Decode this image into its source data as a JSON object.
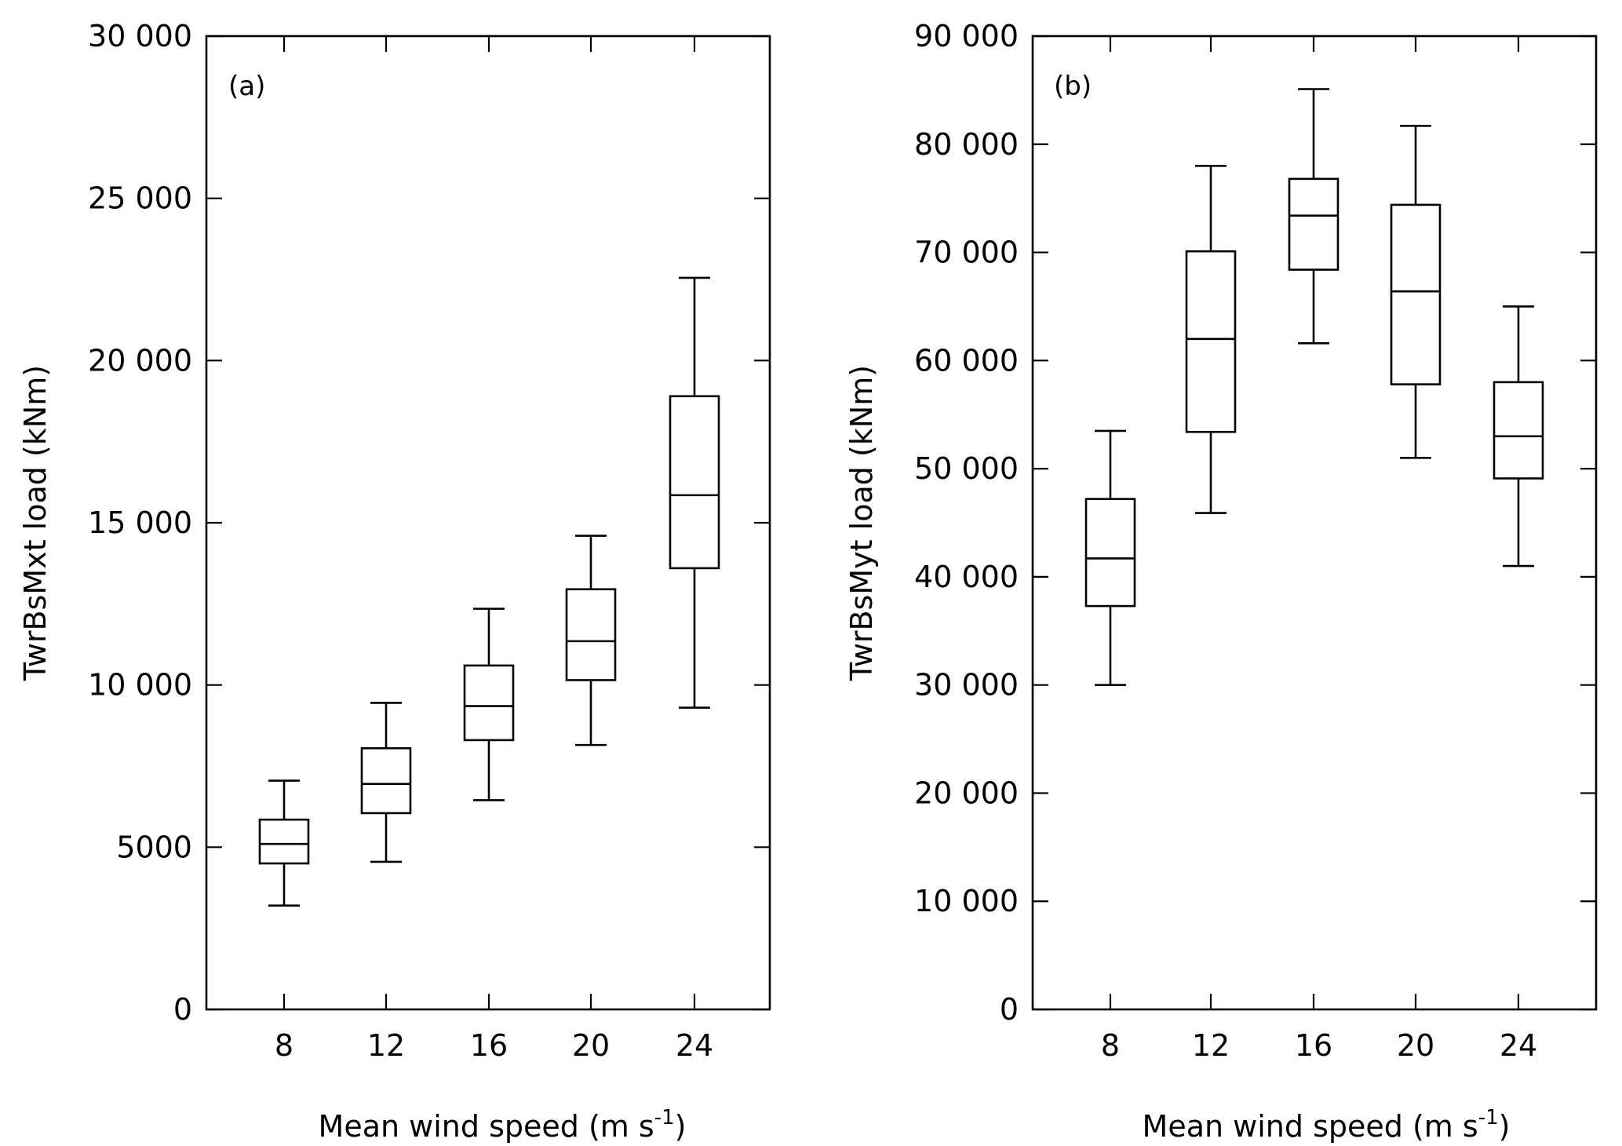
{
  "chart_data": [
    {
      "type": "box",
      "panel_label": "(a)",
      "xlabel": "Mean wind speed (m s",
      "xlabel_sup": "-1",
      "xlabel_close": ")",
      "ylabel": "TwrBsMxt load (kNm)",
      "categories": [
        "8",
        "12",
        "16",
        "20",
        "24"
      ],
      "yticks": [
        0,
        5000,
        10000,
        15000,
        20000,
        25000,
        30000
      ],
      "ytick_labels": [
        "0",
        "5000",
        "10 000",
        "15 000",
        "20 000",
        "25 000",
        "30 000"
      ],
      "ylim": [
        0,
        30000
      ],
      "grid": false,
      "boxes": [
        {
          "category": "8",
          "min": 3200,
          "q1": 4500,
          "median": 5100,
          "q3": 5850,
          "max": 7050
        },
        {
          "category": "12",
          "min": 4550,
          "q1": 6050,
          "median": 6950,
          "q3": 8050,
          "max": 9450
        },
        {
          "category": "16",
          "min": 6450,
          "q1": 8300,
          "median": 9350,
          "q3": 10600,
          "max": 12350
        },
        {
          "category": "20",
          "min": 8150,
          "q1": 10150,
          "median": 11350,
          "q3": 12950,
          "max": 14600
        },
        {
          "category": "24",
          "min": 9300,
          "q1": 13600,
          "median": 15850,
          "q3": 18900,
          "max": 22550
        }
      ]
    },
    {
      "type": "box",
      "panel_label": "(b)",
      "xlabel": "Mean wind speed (m s",
      "xlabel_sup": "-1",
      "xlabel_close": ")",
      "ylabel": "TwrBsMyt load (kNm)",
      "categories": [
        "8",
        "12",
        "16",
        "20",
        "24"
      ],
      "yticks": [
        0,
        10000,
        20000,
        30000,
        40000,
        50000,
        60000,
        70000,
        80000,
        90000
      ],
      "ytick_labels": [
        "0",
        "10 000",
        "20 000",
        "30 000",
        "40 000",
        "50 000",
        "60 000",
        "70 000",
        "80 000",
        "90 000"
      ],
      "ylim": [
        0,
        90000
      ],
      "grid": false,
      "boxes": [
        {
          "category": "8",
          "min": 30000,
          "q1": 37300,
          "median": 41700,
          "q3": 47200,
          "max": 53500
        },
        {
          "category": "12",
          "min": 45900,
          "q1": 53400,
          "median": 62000,
          "q3": 70100,
          "max": 78000
        },
        {
          "category": "16",
          "min": 61600,
          "q1": 68400,
          "median": 73400,
          "q3": 76800,
          "max": 85100
        },
        {
          "category": "20",
          "min": 51000,
          "q1": 57800,
          "median": 66400,
          "q3": 74400,
          "max": 81700
        },
        {
          "category": "24",
          "min": 41000,
          "q1": 49100,
          "median": 53000,
          "q3": 58000,
          "max": 65000
        }
      ]
    }
  ]
}
